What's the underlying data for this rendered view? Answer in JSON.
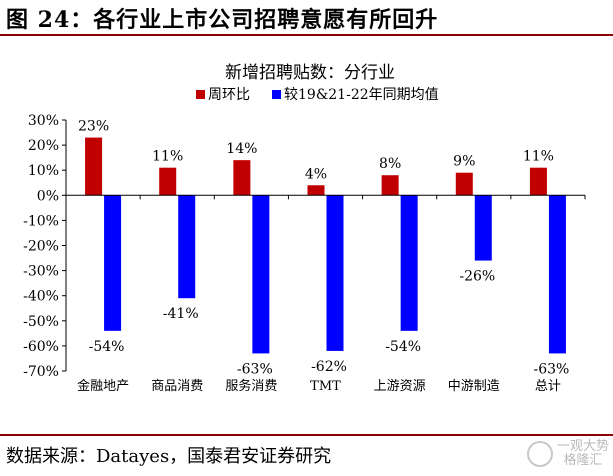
{
  "figure": {
    "title": "图 24：各行业上市公司招聘意愿有所回升",
    "source": "数据来源：Datayes，国泰君安证券研究",
    "watermark": "一观大势\n格隆汇"
  },
  "colors": {
    "rule": "#8a0000",
    "series_mom": "#c00000",
    "series_avg": "#0000ff"
  },
  "chart_data": {
    "type": "bar",
    "title": "新增招聘贴数：分行业",
    "categories": [
      "金融地产",
      "商品消费",
      "服务消费",
      "TMT",
      "上游资源",
      "中游制造",
      "总计"
    ],
    "series": [
      {
        "name": "周环比",
        "values": [
          23,
          11,
          14,
          4,
          8,
          9,
          11
        ],
        "labels": [
          "23%",
          "11%",
          "14%",
          "4%",
          "8%",
          "9%",
          "11%"
        ]
      },
      {
        "name": "较19&21-22年同期均值",
        "values": [
          -54,
          -41,
          -63,
          -62,
          -54,
          -26,
          -63
        ],
        "labels": [
          "-54%",
          "-41%",
          "-63%",
          "-62%",
          "-54%",
          "-26%",
          "-63%"
        ]
      }
    ],
    "yticks": [
      "30%",
      "20%",
      "10%",
      "0%",
      "-10%",
      "-20%",
      "-30%",
      "-40%",
      "-50%",
      "-60%",
      "-70%"
    ],
    "ylim": [
      -70,
      30
    ],
    "legend_position": "top",
    "grid": false
  }
}
